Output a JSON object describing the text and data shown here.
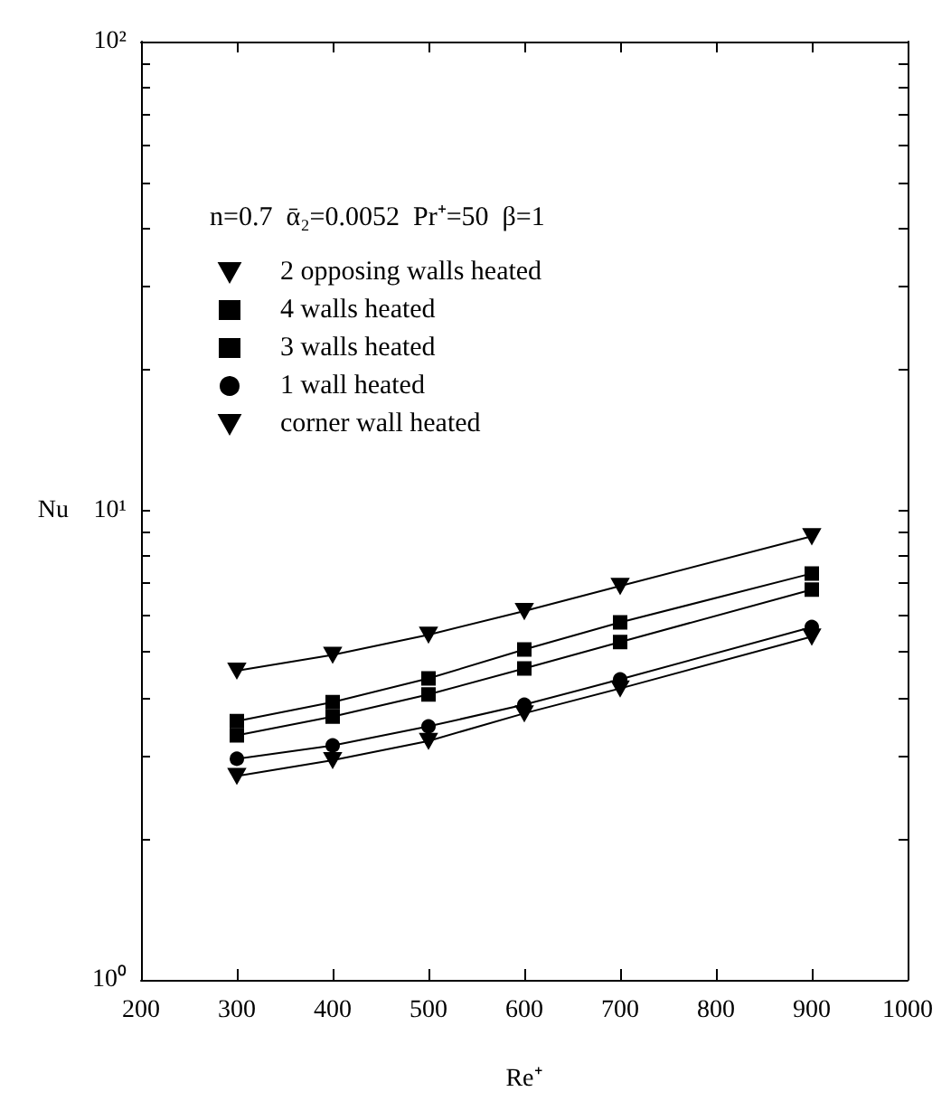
{
  "chart_data": {
    "type": "line",
    "xlabel": "Re⁺",
    "ylabel": "Nu",
    "annotations": [
      "n=0.7  ᾱ₂=0.0052  Pr⁺=50  β=1"
    ],
    "x": [
      300,
      400,
      500,
      600,
      700,
      900
    ],
    "series": [
      {
        "name": "2 opposing walls heated",
        "color": "#000000",
        "marker": "triangle",
        "values": [
          4.56,
          4.93,
          5.44,
          6.11,
          6.91,
          8.82
        ]
      },
      {
        "name": "4 walls heated",
        "color": "#000000",
        "marker": "square",
        "values": [
          3.56,
          3.91,
          4.39,
          5.06,
          5.78,
          7.35
        ]
      },
      {
        "name": "3 walls heated",
        "color": "#000000",
        "marker": "square",
        "values": [
          3.32,
          3.64,
          4.06,
          4.61,
          5.25,
          6.79
        ]
      },
      {
        "name": "1 wall heated",
        "color": "#000000",
        "marker": "circle",
        "values": [
          2.96,
          3.16,
          3.47,
          3.86,
          4.37,
          5.65
        ]
      },
      {
        "name": "corner wall heated",
        "color": "#000000",
        "marker": "triangle",
        "values": [
          2.72,
          2.94,
          3.23,
          3.7,
          4.18,
          5.39
        ]
      }
    ],
    "xlim": [
      200,
      1000
    ],
    "xticks": [
      200,
      300,
      400,
      500,
      600,
      700,
      800,
      900,
      1000
    ],
    "ylim": [
      1,
      100
    ],
    "log": "y",
    "yticks": [
      {
        "value": 1,
        "label": "10⁰"
      },
      {
        "value": 2,
        "label": null
      },
      {
        "value": 3,
        "label": null
      },
      {
        "value": 4,
        "label": null
      },
      {
        "value": 5,
        "label": null
      },
      {
        "value": 6,
        "label": null
      },
      {
        "value": 7,
        "label": null
      },
      {
        "value": 8,
        "label": null
      },
      {
        "value": 9,
        "label": null
      },
      {
        "value": 10,
        "label": "10¹"
      },
      {
        "value": 20,
        "label": null
      },
      {
        "value": 30,
        "label": null
      },
      {
        "value": 40,
        "label": null
      },
      {
        "value": 50,
        "label": null
      },
      {
        "value": 60,
        "label": null
      },
      {
        "value": 70,
        "label": null
      },
      {
        "value": 80,
        "label": null
      },
      {
        "value": 90,
        "label": null
      },
      {
        "value": 100,
        "label": "10²"
      }
    ],
    "grid": false,
    "legend": "top left",
    "line_style": "solid"
  }
}
